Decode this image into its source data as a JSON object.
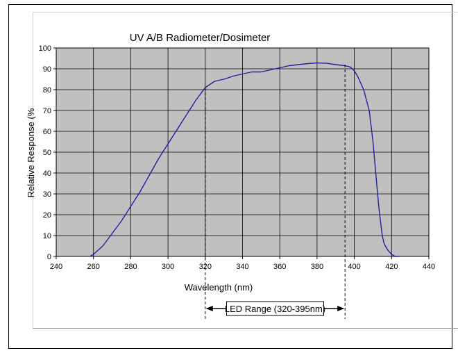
{
  "chart_data": {
    "type": "line",
    "title": "UV A/B Radiometer/Dosimeter",
    "xlabel": "Wavelength (nm)",
    "ylabel": "Relative Response (%",
    "xlim": [
      240,
      440
    ],
    "ylim": [
      0,
      100
    ],
    "x_ticks": [
      "240",
      "260",
      "280",
      "300",
      "320",
      "340",
      "360",
      "380",
      "400",
      "420",
      "440"
    ],
    "y_ticks": [
      "0",
      "10",
      "20",
      "30",
      "40",
      "50",
      "60",
      "70",
      "80",
      "90",
      "100"
    ],
    "grid": true,
    "legend": "none",
    "colors": {
      "plot_bg": "#c0c0c0",
      "line": "#1f1fa0",
      "grid": "#000000"
    },
    "series": [
      {
        "x": [
          258,
          260,
          265,
          270,
          275,
          280,
          285,
          290,
          295,
          300,
          305,
          310,
          315,
          320,
          325,
          330,
          335,
          340,
          345,
          350,
          355,
          360,
          365,
          370,
          375,
          380,
          385,
          390,
          395,
          398,
          400,
          402,
          405,
          408,
          410,
          412,
          413,
          414,
          415,
          416,
          418,
          420,
          422,
          424
        ],
        "y": [
          0,
          1,
          5,
          11,
          17,
          24,
          31,
          39,
          47,
          54,
          61,
          68,
          75,
          81,
          84,
          85,
          86.5,
          87.5,
          88.5,
          88.5,
          89.5,
          90.5,
          91.5,
          92,
          92.5,
          92.8,
          92.7,
          92,
          91.5,
          90.8,
          89,
          86,
          80,
          70,
          55,
          35,
          25,
          17,
          10,
          6,
          3,
          1,
          0,
          0
        ]
      }
    ],
    "annotations": [
      {
        "text": "LED Range (320-395nm)",
        "from": 320,
        "to": 395
      }
    ]
  }
}
